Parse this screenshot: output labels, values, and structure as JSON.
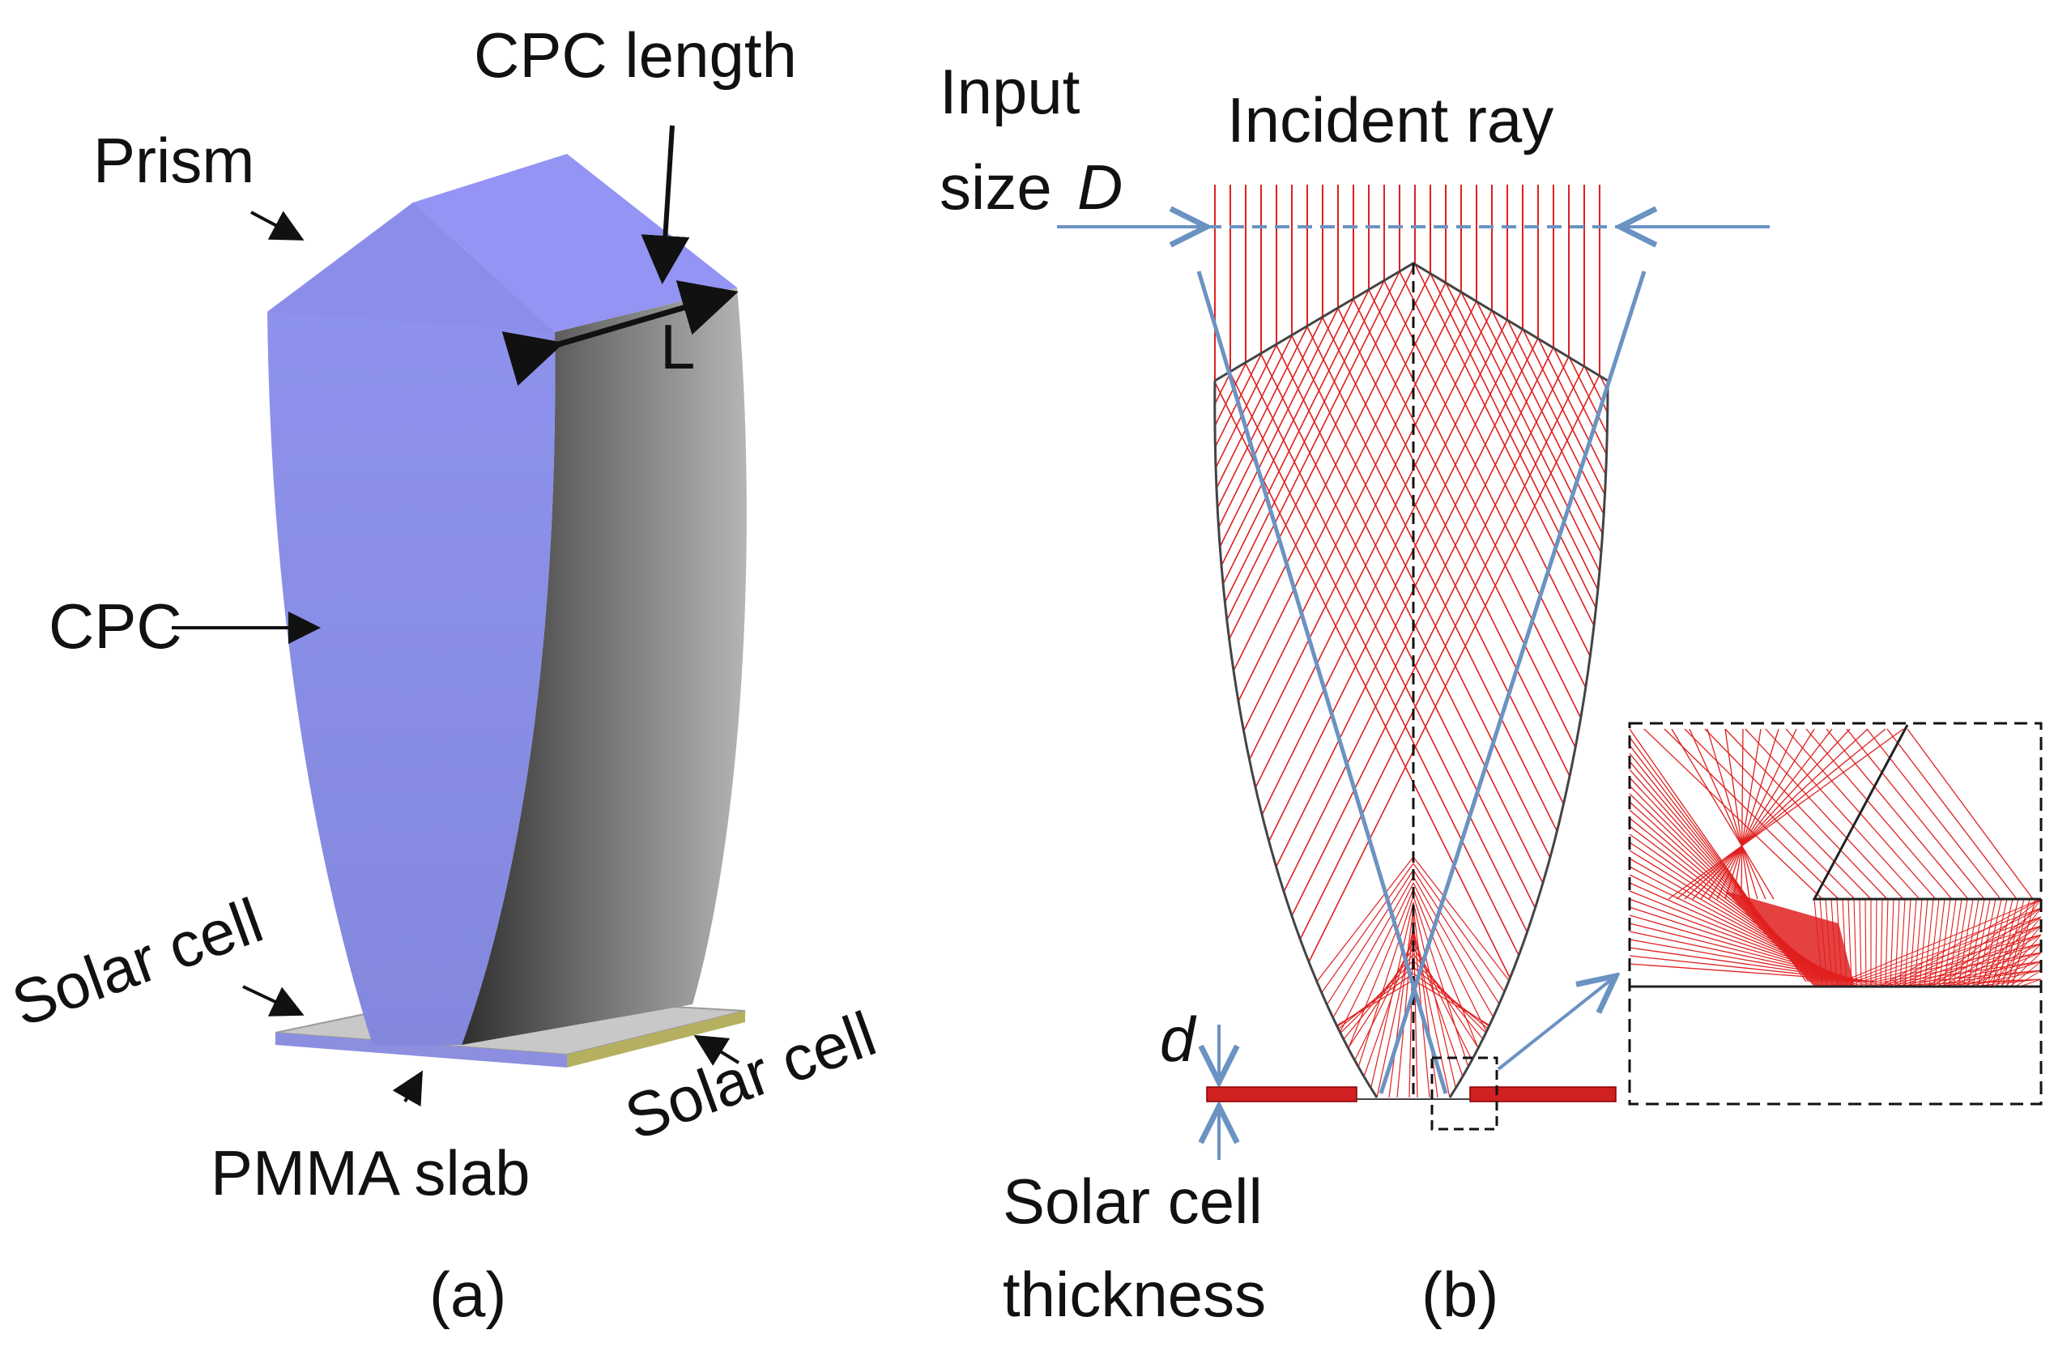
{
  "panel_a": {
    "caption": "(a)",
    "labels": {
      "cpc_length": "CPC length",
      "prism": "Prism",
      "length_symbol": "L",
      "cpc": "CPC",
      "solar_cell_left": "Solar cell",
      "solar_cell_right": "Solar cell",
      "pmma_slab": "PMMA slab"
    }
  },
  "panel_b": {
    "caption": "(b)",
    "labels": {
      "input_size_line1": "Input",
      "input_size_line2": "size",
      "input_size_symbol": "D",
      "incident_ray": "Incident ray",
      "thickness_symbol": "d",
      "solar_cell_thickness_line1": "Solar cell",
      "solar_cell_thickness_line2": "thickness"
    }
  },
  "colors": {
    "cpc_face": "#8a8fe6",
    "prism_top": "#9090f0",
    "cpc_side_dark": "#3a3a3a",
    "cpc_side_light": "#9a9a9a",
    "pmma_slab": "#c8c8c8",
    "solar_cell_edge": "#b5b060",
    "ray": "#e02020",
    "guide_line": "#6b93c2",
    "outline": "#444444"
  }
}
